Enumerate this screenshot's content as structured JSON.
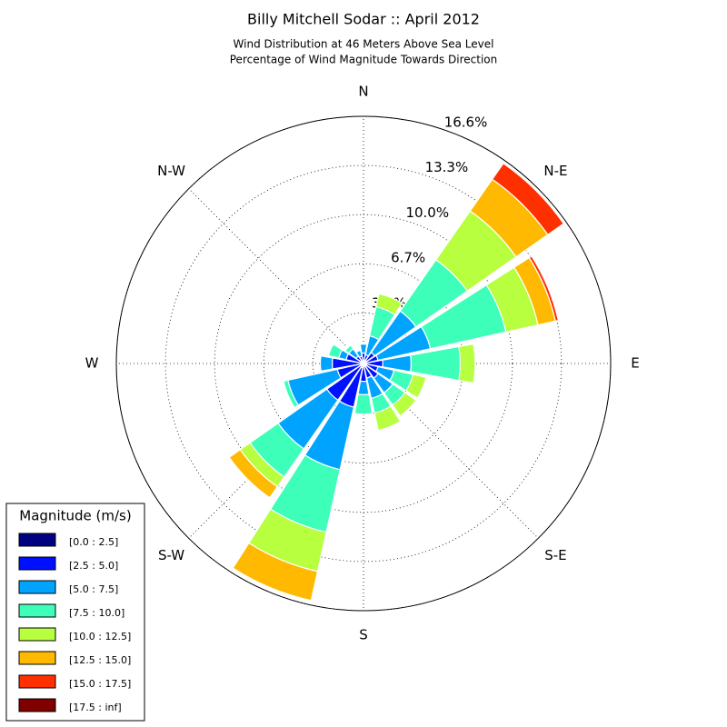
{
  "chart_data": {
    "type": "windrose",
    "title": "Billy Mitchell Sodar :: April 2012",
    "subtitle": [
      "Wind Distribution at 46 Meters Above Sea Level",
      "Percentage of Wind Magnitude Towards Direction"
    ],
    "categories": [
      "N",
      null,
      "N-E",
      null,
      "E",
      null,
      "S-E",
      null,
      "S",
      null,
      "S-W",
      null,
      "W",
      null,
      "N-W",
      null
    ],
    "rlim": [
      0,
      16.6
    ],
    "rticks": [
      {
        "value": 3.4,
        "label": "3.4%"
      },
      {
        "value": 6.7,
        "label": "6.7%"
      },
      {
        "value": 10.0,
        "label": "10.0%"
      },
      {
        "value": 13.3,
        "label": "13.3%"
      },
      {
        "value": 16.6,
        "label": "16.6%"
      }
    ],
    "grid": true,
    "legend_title": "Magnitude (m/s)",
    "legend_position": "lower left",
    "series": [
      {
        "name": "[0.0 : 2.5]",
        "color": "#000080",
        "values": [
          0.1,
          0.1,
          0.2,
          0.2,
          0.2,
          0.2,
          0.2,
          0.2,
          0.2,
          0.3,
          0.2,
          0.2,
          0.2,
          0.2,
          0.1,
          0.1
        ]
      },
      {
        "name": "[2.5 : 5.0]",
        "color": "#0010ff",
        "values": [
          0.6,
          0.5,
          0.7,
          0.8,
          1.1,
          0.8,
          1.0,
          0.8,
          1.0,
          2.7,
          2.8,
          1.6,
          1.9,
          1.0,
          0.5,
          0.4
        ]
      },
      {
        "name": "[5.0 : 7.5]",
        "color": "#00a4ff",
        "values": [
          0.6,
          1.3,
          3.4,
          3.6,
          1.9,
          1.1,
          1.2,
          1.4,
          0.9,
          4.3,
          4.0,
          3.4,
          0.8,
          0.5,
          0.6,
          0.4
        ]
      },
      {
        "name": "[7.5 : 10.0]",
        "color": "#3dffba",
        "values": [
          0,
          2.0,
          4.2,
          5.2,
          3.3,
          1.3,
          1.0,
          1.0,
          1.3,
          4.3,
          2.3,
          0.3,
          0,
          0.7,
          0.3,
          0
        ]
      },
      {
        "name": "[10.0 : 12.5]",
        "color": "#b7ff3f",
        "values": [
          0,
          0.9,
          4.0,
          2.2,
          1.0,
          0.9,
          0.9,
          1.2,
          0,
          2.7,
          0.8,
          0,
          0,
          0,
          0,
          0
        ]
      },
      {
        "name": "[12.5 : 15.0]",
        "color": "#ffb900",
        "values": [
          0,
          0,
          2.6,
          1.2,
          0,
          0,
          0,
          0,
          0,
          2.0,
          0.9,
          0,
          0,
          0,
          0,
          0
        ]
      },
      {
        "name": "[15.0 : 17.5]",
        "color": "#ff3000",
        "values": [
          0,
          0,
          1.3,
          0.2,
          0,
          0,
          0,
          0,
          0,
          0,
          0,
          0,
          0,
          0,
          0,
          0
        ]
      },
      {
        "name": "[17.5 : inf]",
        "color": "#800000",
        "values": [
          0,
          0,
          0,
          0,
          0,
          0,
          0,
          0,
          0,
          0,
          0,
          0,
          0,
          0,
          0,
          0
        ]
      }
    ]
  }
}
